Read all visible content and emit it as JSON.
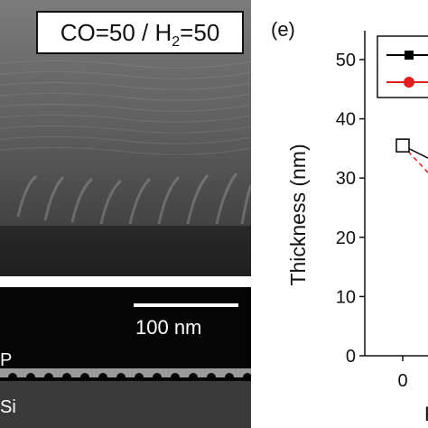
{
  "sem": {
    "condition_prefix": "CO=50 / H",
    "condition_sub": "2",
    "condition_suffix": "=50",
    "scale_bar_label": "100 nm",
    "layer_top": "P",
    "layer_bottom": "Si"
  },
  "chart_data": {
    "type": "line",
    "panel_label": "(e)",
    "ylabel": "Thickness (nm)",
    "xlabel": "F",
    "ylim": [
      0,
      50
    ],
    "yticks": [
      "0",
      "10",
      "20",
      "30",
      "40",
      "50"
    ],
    "xticks": [
      "0"
    ],
    "series": [
      {
        "color": "#000000",
        "marker": "square",
        "points": [
          {
            "x": 0,
            "y": 35.5
          }
        ]
      },
      {
        "color": "#e02020",
        "marker": "circle",
        "points": [
          {
            "x": 0,
            "y": 35.5
          }
        ]
      }
    ],
    "grid": false
  },
  "colors": {
    "series_black": "#000000",
    "series_red": "#e02020"
  }
}
